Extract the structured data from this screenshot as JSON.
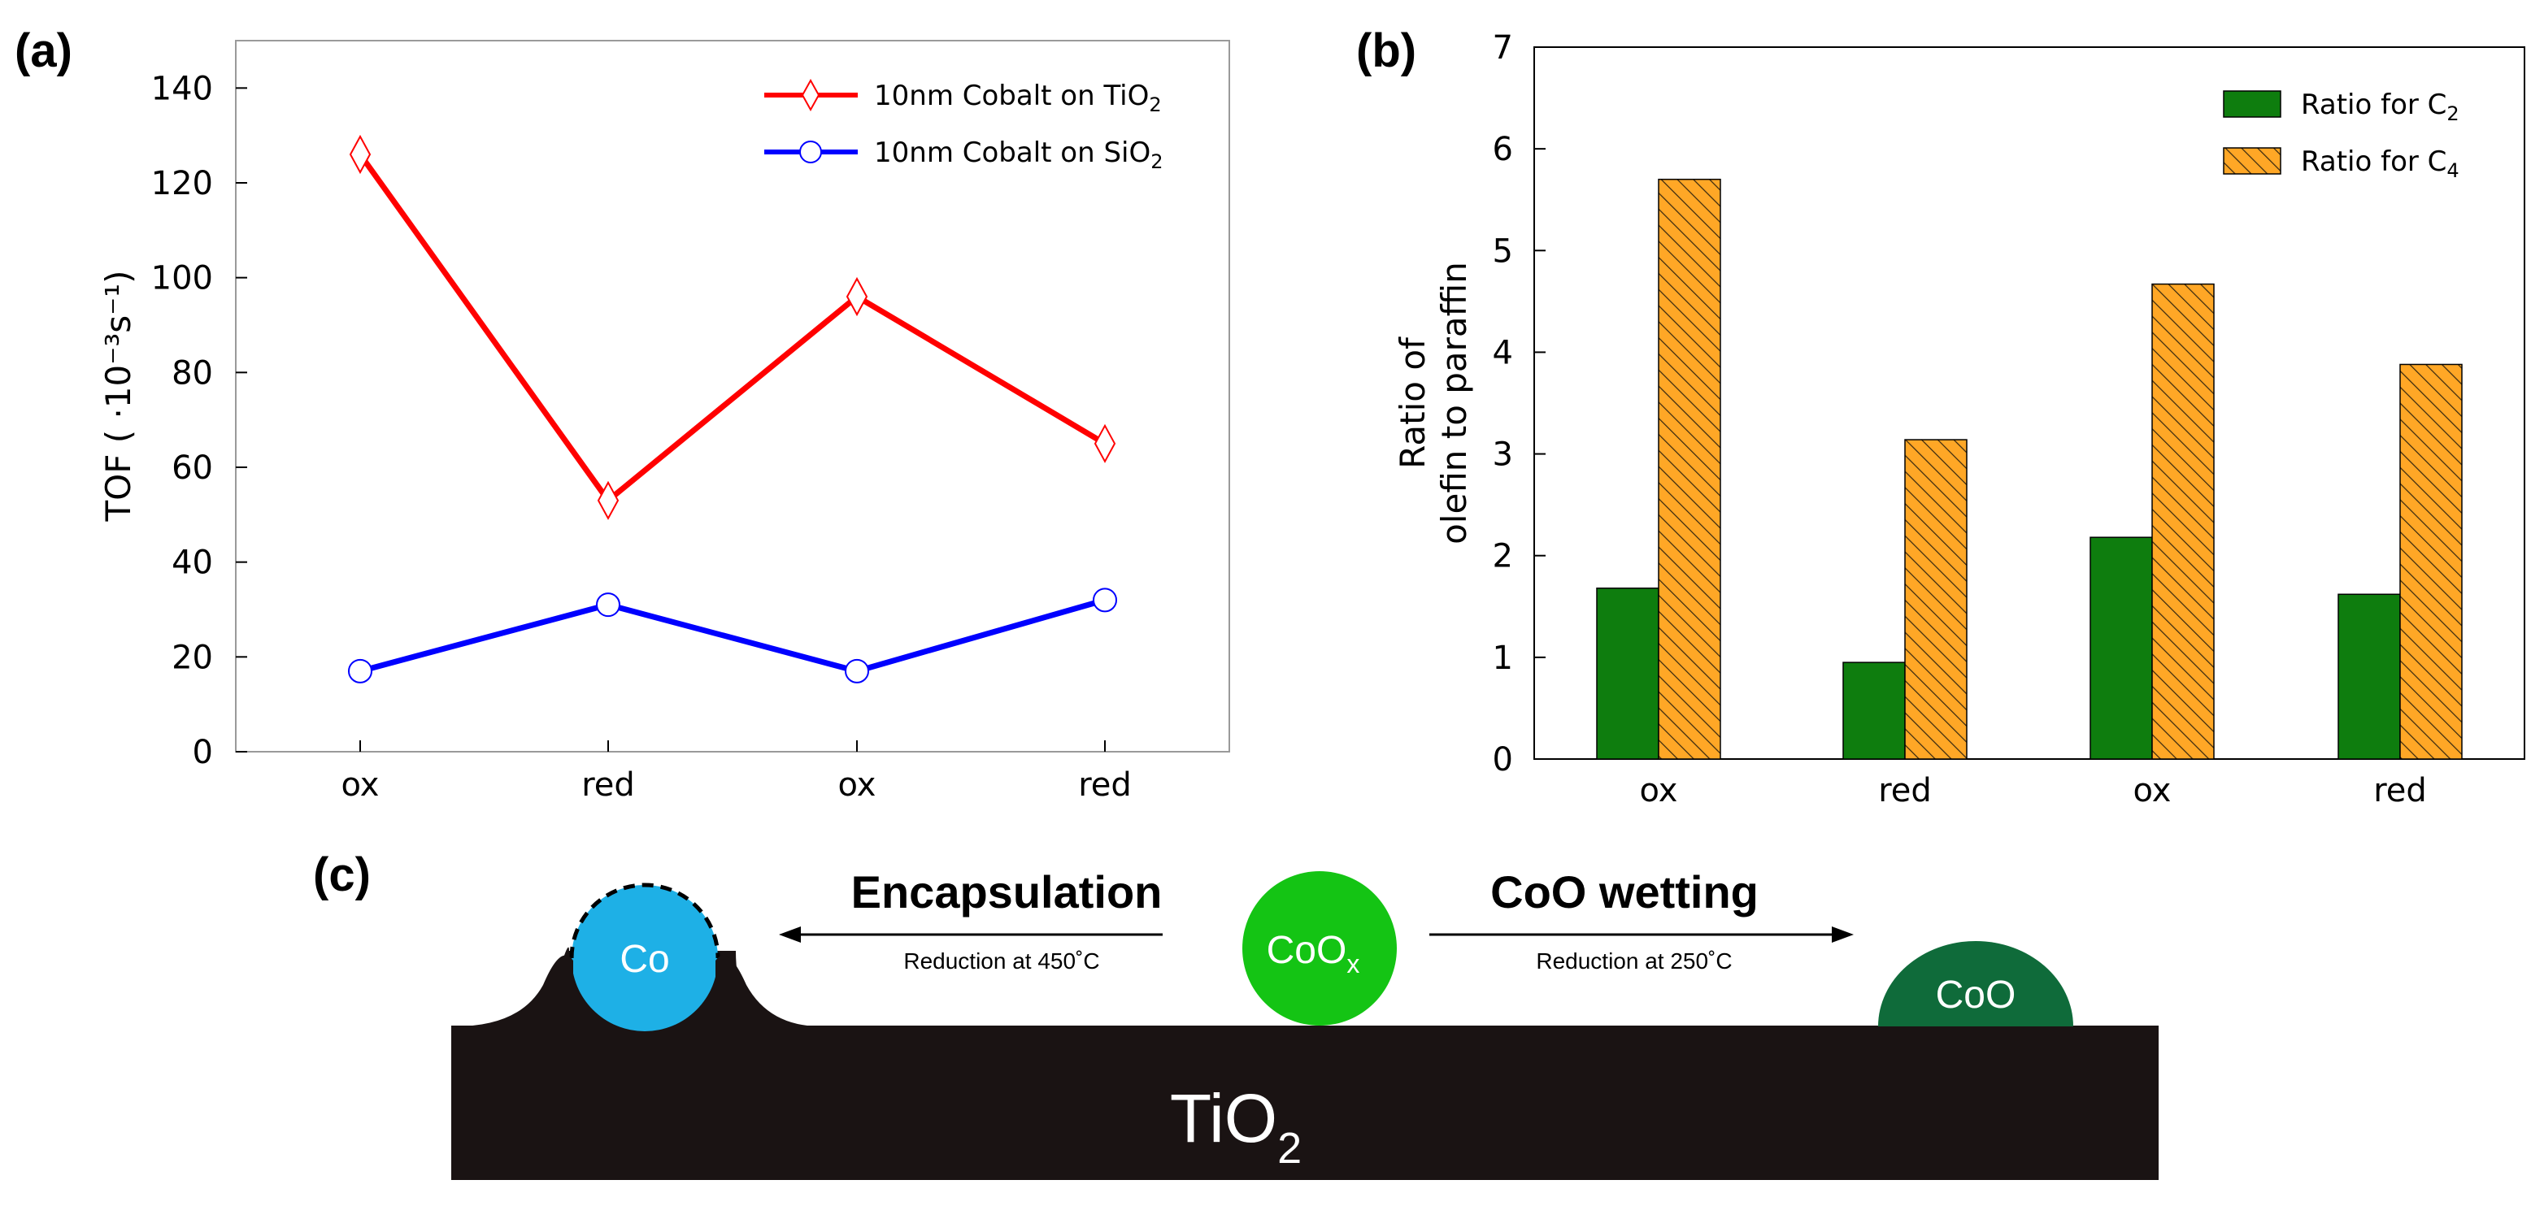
{
  "panels": {
    "a": "(a)",
    "b": "(b)",
    "c": "(c)"
  },
  "colors": {
    "tio2_line": "#ff0000",
    "sio2_line": "#0000ff",
    "c2_bar": "#0e7d0e",
    "c4_bar": "#ffa726",
    "co_particle": "#1eb0e6",
    "coox_particle": "#14c414",
    "coo_particle": "#0f6b3a",
    "support": "#1a1313"
  },
  "chart_data": [
    {
      "type": "line",
      "title": "",
      "categories": [
        "ox",
        "red",
        "ox",
        "red"
      ],
      "series": [
        {
          "name": "10nm Cobalt on TiO",
          "subscript": "2",
          "marker": "diamond",
          "values": [
            126,
            53,
            96,
            65
          ]
        },
        {
          "name": "10nm Cobalt on SiO",
          "subscript": "2",
          "marker": "circle",
          "values": [
            17,
            31,
            17,
            32
          ]
        }
      ],
      "xlabel": "",
      "ylabel": "TOF ( ·10⁻³s⁻¹)",
      "ylim": [
        0,
        150
      ],
      "yticks": [
        "0",
        "20",
        "40",
        "60",
        "80",
        "100",
        "120",
        "140"
      ],
      "legend": "top-right",
      "grid": false
    },
    {
      "type": "bar",
      "title": "",
      "categories": [
        "ox",
        "red",
        "ox",
        "red"
      ],
      "series": [
        {
          "name": "Ratio for C",
          "subscript": "2",
          "values": [
            1.68,
            0.95,
            2.18,
            1.62
          ]
        },
        {
          "name": "Ratio for C",
          "subscript": "4",
          "values": [
            5.7,
            3.14,
            4.67,
            3.88
          ]
        }
      ],
      "xlabel": "",
      "ylabel_line1": "Ratio of",
      "ylabel_line2": "olefin to paraffin",
      "ylim": [
        0,
        7
      ],
      "yticks": [
        "0",
        "1",
        "2",
        "3",
        "4",
        "5",
        "6",
        "7"
      ],
      "legend": "top-right",
      "grid": false
    }
  ],
  "diagram": {
    "encapsulation_title": "Encapsulation",
    "encapsulation_sub": "Reduction at 450˚C",
    "wetting_title": "CoO wetting",
    "wetting_sub": "Reduction at 250˚C",
    "co_label": "Co",
    "coox_label": "CoO",
    "coox_subscript": "x",
    "coo_label": "CoO",
    "support_label": "TiO",
    "support_subscript": "2"
  }
}
